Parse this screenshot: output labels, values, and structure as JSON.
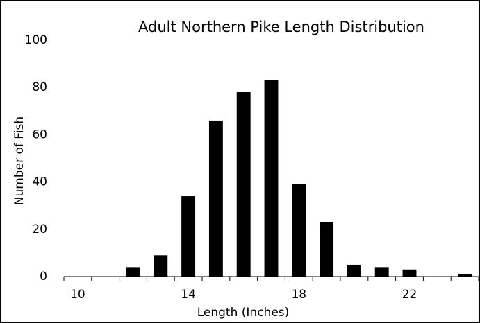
{
  "chart_data": {
    "type": "bar",
    "title": "Adult Northern Pike Length Distribution",
    "x_label": "Length (Inches)",
    "y_label": "Number of Fish",
    "categories": [
      "10",
      null,
      null,
      null,
      "14",
      null,
      null,
      null,
      "18",
      null,
      null,
      null,
      "22",
      null,
      null
    ],
    "values": [
      0,
      0,
      4,
      9,
      34,
      66,
      78,
      83,
      39,
      23,
      5,
      4,
      3,
      0,
      1
    ],
    "color": "#000000",
    "ylim": [
      0,
      100
    ],
    "yticks": [
      0,
      20,
      40,
      60,
      80,
      100
    ]
  }
}
